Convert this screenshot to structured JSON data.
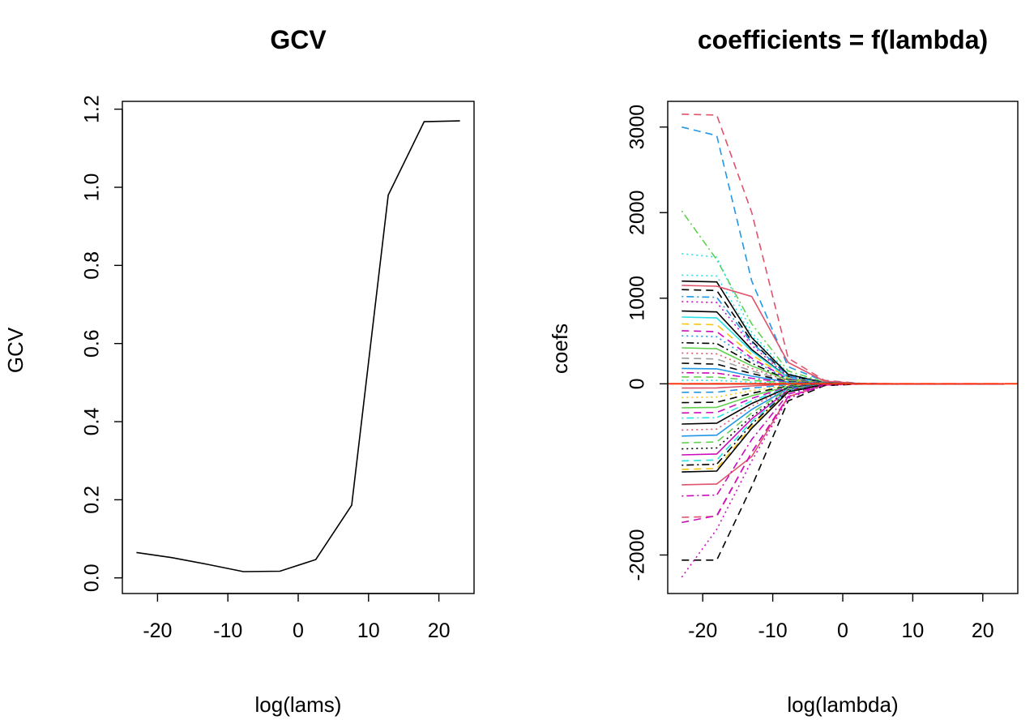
{
  "chart_data": [
    {
      "type": "line",
      "title": "GCV",
      "xlabel": "log(lams)",
      "ylabel": "GCV",
      "xlim": [
        -25,
        25
      ],
      "ylim": [
        -0.04,
        1.22
      ],
      "xticks": [
        -20,
        -10,
        0,
        10,
        20
      ],
      "yticks": [
        0.0,
        0.2,
        0.4,
        0.6,
        0.8,
        1.0,
        1.2
      ],
      "xtick_labels": [
        "-20",
        "-10",
        "0",
        "10",
        "20"
      ],
      "ytick_labels": [
        "0.0",
        "0.2",
        "0.4",
        "0.6",
        "0.8",
        "1.0",
        "1.2"
      ],
      "x": [
        -23,
        -18,
        -13,
        -7.8,
        -2.6,
        2.5,
        7.6,
        12.8,
        17.9,
        23
      ],
      "series": [
        {
          "values": [
            0.065,
            0.052,
            0.035,
            0.016,
            0.017,
            0.047,
            0.186,
            0.98,
            1.168,
            1.17
          ]
        }
      ]
    },
    {
      "type": "line",
      "title": "coefficients = f(lambda)",
      "xlabel": "log(lambda)",
      "ylabel": "coefs",
      "xlim": [
        -25,
        25
      ],
      "ylim": [
        -2450,
        3300
      ],
      "xticks": [
        -20,
        -10,
        0,
        10,
        20
      ],
      "yticks": [
        -2000,
        0,
        1000,
        2000,
        3000
      ],
      "xtick_labels": [
        "-20",
        "-10",
        "0",
        "10",
        "20"
      ],
      "ytick_labels": [
        "-2000",
        "0",
        "1000",
        "2000",
        "3000"
      ],
      "x": [
        -23,
        -18,
        -13,
        -7.8,
        -2.6,
        2.5,
        7.6,
        12.8,
        17.9,
        23
      ],
      "series": [
        {
          "color": "#DF536B",
          "dash": "dashed",
          "values": [
            3150,
            3140,
            2000,
            300,
            40,
            5,
            0,
            0,
            0,
            0
          ]
        },
        {
          "color": "#2297E6",
          "dash": "dashed",
          "values": [
            3000,
            2900,
            1200,
            200,
            30,
            4,
            0,
            0,
            0,
            0
          ]
        },
        {
          "color": "#61D04F",
          "dash": "dotdash",
          "values": [
            2020,
            1450,
            700,
            150,
            20,
            2,
            0,
            0,
            0,
            0
          ]
        },
        {
          "color": "#28E2E5",
          "dash": "dotted",
          "values": [
            1520,
            1480,
            600,
            120,
            15,
            2,
            0,
            0,
            0,
            0
          ]
        },
        {
          "color": "#28E2E5",
          "dash": "dotted",
          "values": [
            1270,
            1260,
            560,
            100,
            12,
            1,
            0,
            0,
            0,
            0
          ]
        },
        {
          "color": "#000000",
          "dash": "solid",
          "values": [
            1200,
            1190,
            540,
            110,
            12,
            1,
            0,
            0,
            0,
            0
          ]
        },
        {
          "color": "#DF536B",
          "dash": "solid",
          "values": [
            1150,
            1140,
            1020,
            250,
            30,
            3,
            0,
            0,
            0,
            0
          ]
        },
        {
          "color": "#000000",
          "dash": "dashed",
          "values": [
            1100,
            1090,
            500,
            90,
            10,
            1,
            0,
            0,
            0,
            0
          ]
        },
        {
          "color": "#2297E6",
          "dash": "dotdash",
          "values": [
            1020,
            1010,
            480,
            90,
            10,
            1,
            0,
            0,
            0,
            0
          ]
        },
        {
          "color": "#CD0BBC",
          "dash": "dotted",
          "values": [
            960,
            950,
            450,
            80,
            9,
            1,
            0,
            0,
            0,
            0
          ]
        },
        {
          "color": "#000000",
          "dash": "solid",
          "values": [
            850,
            840,
            400,
            70,
            8,
            1,
            0,
            0,
            0,
            0
          ]
        },
        {
          "color": "#28E2E5",
          "dash": "solid",
          "values": [
            780,
            770,
            380,
            70,
            8,
            1,
            0,
            0,
            0,
            0
          ]
        },
        {
          "color": "#F5C710",
          "dash": "dashed",
          "values": [
            700,
            690,
            340,
            60,
            7,
            1,
            0,
            0,
            0,
            0
          ]
        },
        {
          "color": "#CD0BBC",
          "dash": "dashed",
          "values": [
            620,
            610,
            300,
            55,
            6,
            1,
            0,
            0,
            0,
            0
          ]
        },
        {
          "color": "#2297E6",
          "dash": "dotted",
          "values": [
            560,
            550,
            280,
            50,
            6,
            1,
            0,
            0,
            0,
            0
          ]
        },
        {
          "color": "#000000",
          "dash": "dotdash",
          "values": [
            480,
            470,
            240,
            45,
            5,
            0,
            0,
            0,
            0,
            0
          ]
        },
        {
          "color": "#61D04F",
          "dash": "solid",
          "values": [
            420,
            410,
            210,
            40,
            5,
            0,
            0,
            0,
            0,
            0
          ]
        },
        {
          "color": "#DF536B",
          "dash": "dotted",
          "values": [
            360,
            350,
            180,
            35,
            4,
            0,
            0,
            0,
            0,
            0
          ]
        },
        {
          "color": "#9E9E9E",
          "dash": "dashed",
          "values": [
            300,
            290,
            150,
            30,
            3,
            0,
            0,
            0,
            0,
            0
          ]
        },
        {
          "color": "#000000",
          "dash": "dashed",
          "values": [
            240,
            230,
            120,
            25,
            3,
            0,
            0,
            0,
            0,
            0
          ]
        },
        {
          "color": "#2297E6",
          "dash": "solid",
          "values": [
            180,
            175,
            90,
            20,
            2,
            0,
            0,
            0,
            0,
            0
          ]
        },
        {
          "color": "#CD0BBC",
          "dash": "dotdash",
          "values": [
            130,
            125,
            65,
            15,
            2,
            0,
            0,
            0,
            0,
            0
          ]
        },
        {
          "color": "#61D04F",
          "dash": "dashed",
          "values": [
            80,
            78,
            40,
            10,
            1,
            0,
            0,
            0,
            0,
            0
          ]
        },
        {
          "color": "#28E2E5",
          "dash": "dotted",
          "values": [
            40,
            39,
            20,
            5,
            1,
            0,
            0,
            0,
            0,
            0
          ]
        },
        {
          "color": "#000000",
          "dash": "solid",
          "values": [
            0,
            0,
            0,
            0,
            0,
            0,
            0,
            0,
            0,
            0
          ]
        },
        {
          "color": "#DF536B",
          "dash": "solid",
          "values": [
            -50,
            -48,
            -25,
            -6,
            -1,
            0,
            0,
            0,
            0,
            0
          ]
        },
        {
          "color": "#2297E6",
          "dash": "dashed",
          "values": [
            -100,
            -98,
            -50,
            -12,
            -2,
            0,
            0,
            0,
            0,
            0
          ]
        },
        {
          "color": "#F5C710",
          "dash": "dotted",
          "values": [
            -160,
            -155,
            -80,
            -18,
            -2,
            0,
            0,
            0,
            0,
            0
          ]
        },
        {
          "color": "#000000",
          "dash": "dashed",
          "values": [
            -220,
            -215,
            -110,
            -25,
            -3,
            0,
            0,
            0,
            0,
            0
          ]
        },
        {
          "color": "#61D04F",
          "dash": "solid",
          "values": [
            -280,
            -275,
            -140,
            -30,
            -3,
            0,
            0,
            0,
            0,
            0
          ]
        },
        {
          "color": "#CD0BBC",
          "dash": "dashed",
          "values": [
            -340,
            -335,
            -170,
            -35,
            -4,
            0,
            0,
            0,
            0,
            0
          ]
        },
        {
          "color": "#28E2E5",
          "dash": "dotdash",
          "values": [
            -400,
            -395,
            -200,
            -40,
            -5,
            0,
            0,
            0,
            0,
            0
          ]
        },
        {
          "color": "#000000",
          "dash": "solid",
          "values": [
            -470,
            -460,
            -230,
            -45,
            -5,
            0,
            0,
            0,
            0,
            0
          ]
        },
        {
          "color": "#DF536B",
          "dash": "dotted",
          "values": [
            -540,
            -530,
            -260,
            -50,
            -6,
            0,
            0,
            0,
            0,
            0
          ]
        },
        {
          "color": "#2297E6",
          "dash": "solid",
          "values": [
            -610,
            -600,
            -300,
            -55,
            -6,
            -1,
            0,
            0,
            0,
            0
          ]
        },
        {
          "color": "#61D04F",
          "dash": "dashed",
          "values": [
            -690,
            -680,
            -340,
            -60,
            -7,
            -1,
            0,
            0,
            0,
            0
          ]
        },
        {
          "color": "#000000",
          "dash": "dotted",
          "values": [
            -760,
            -750,
            -380,
            -70,
            -8,
            -1,
            0,
            0,
            0,
            0
          ]
        },
        {
          "color": "#CD0BBC",
          "dash": "solid",
          "values": [
            -830,
            -820,
            -410,
            -75,
            -8,
            -1,
            0,
            0,
            0,
            0
          ]
        },
        {
          "color": "#28E2E5",
          "dash": "dashed",
          "values": [
            -900,
            -890,
            -440,
            -80,
            -9,
            -1,
            0,
            0,
            0,
            0
          ]
        },
        {
          "color": "#000000",
          "dash": "dotdash",
          "values": [
            -950,
            -940,
            -470,
            -85,
            -9,
            -1,
            0,
            0,
            0,
            0
          ]
        },
        {
          "color": "#F5C710",
          "dash": "dashed",
          "values": [
            -1000,
            -990,
            -500,
            -90,
            -10,
            -1,
            0,
            0,
            0,
            0
          ]
        },
        {
          "color": "#000000",
          "dash": "solid",
          "values": [
            -1030,
            -1020,
            -520,
            -95,
            -10,
            -1,
            0,
            0,
            0,
            0
          ]
        },
        {
          "color": "#DF536B",
          "dash": "solid",
          "values": [
            -1180,
            -1170,
            -850,
            -150,
            -15,
            -1,
            0,
            0,
            0,
            0
          ]
        },
        {
          "color": "#CD0BBC",
          "dash": "dotdash",
          "values": [
            -1310,
            -1300,
            -650,
            -120,
            -12,
            -1,
            0,
            0,
            0,
            0
          ]
        },
        {
          "color": "#DF536B",
          "dash": "dashed",
          "values": [
            -1560,
            -1550,
            -800,
            -150,
            -15,
            -1,
            0,
            0,
            0,
            0
          ]
        },
        {
          "color": "#CD0BBC",
          "dash": "dashed",
          "values": [
            -1620,
            -1540,
            -800,
            -150,
            -15,
            -1,
            0,
            0,
            0,
            0
          ]
        },
        {
          "color": "#000000",
          "dash": "dashed",
          "values": [
            -2060,
            -2060,
            -1200,
            -200,
            -20,
            -2,
            0,
            0,
            0,
            0
          ]
        },
        {
          "color": "#CD0BBC",
          "dash": "dotted",
          "values": [
            -2260,
            -1700,
            -900,
            -170,
            -17,
            -2,
            0,
            0,
            0,
            0
          ]
        },
        {
          "color": "#FF2A00",
          "dash": "solid",
          "values": [
            0,
            0,
            0,
            0,
            0,
            0,
            0,
            0,
            0,
            0
          ]
        },
        {
          "color": "#FF2A00",
          "dash": "dashed",
          "values": [
            2,
            2,
            2,
            2,
            2,
            2,
            2,
            2,
            2,
            2
          ]
        }
      ]
    }
  ]
}
